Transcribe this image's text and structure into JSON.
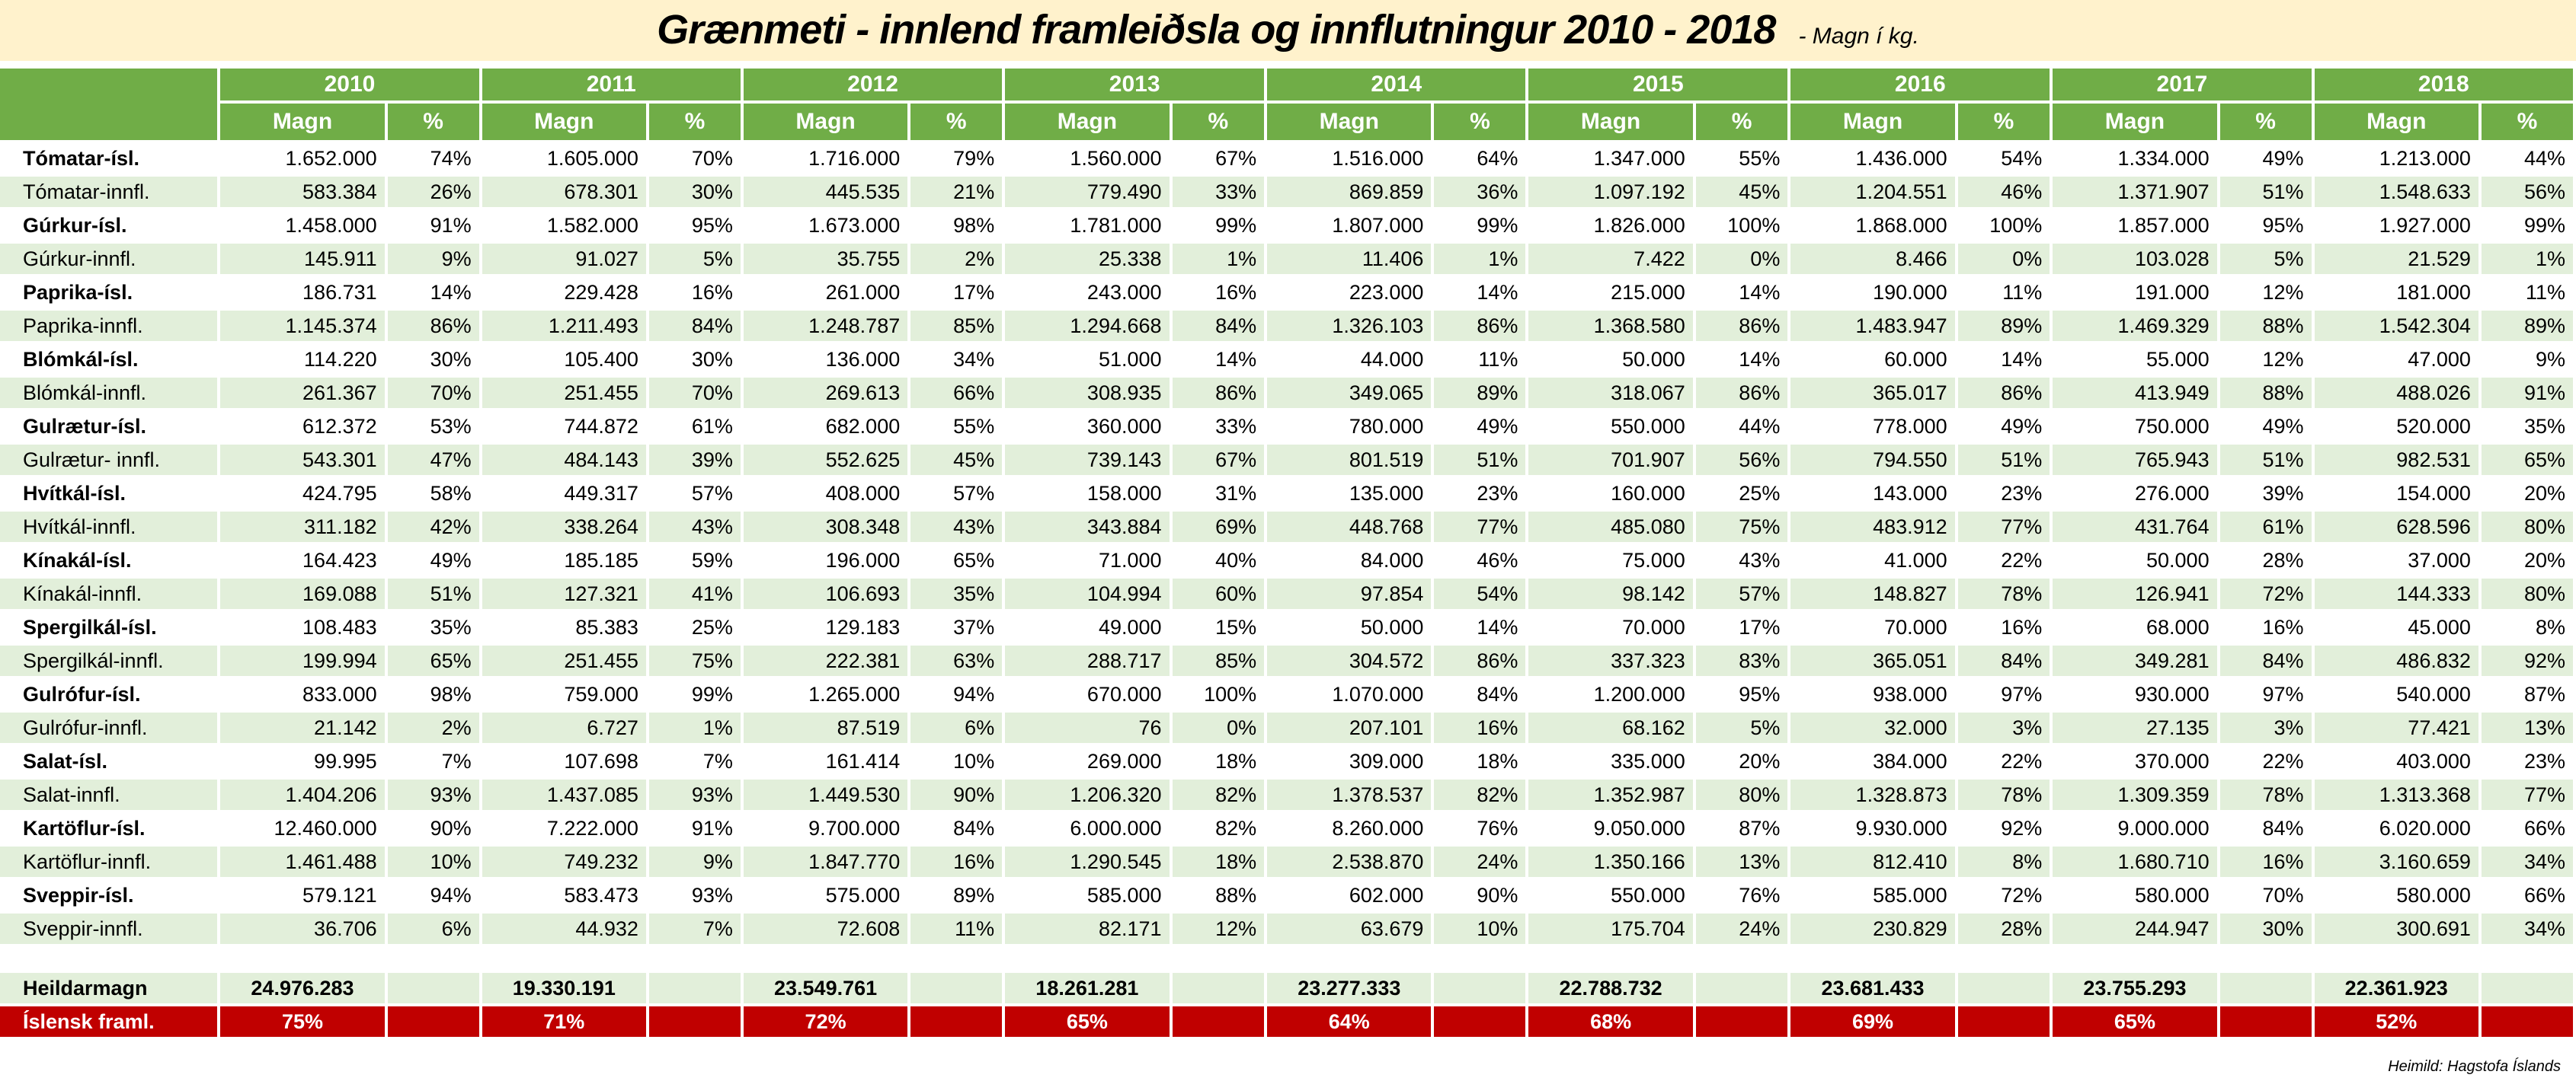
{
  "title": "Grænmeti - innlend framleiðsla og innflutningur 2010 - 2018",
  "unit": "- Magn í kg.",
  "years": [
    "2010",
    "2011",
    "2012",
    "2013",
    "2014",
    "2015",
    "2016",
    "2017",
    "2018"
  ],
  "sub_headers": {
    "amount": "Magn",
    "pct": "%"
  },
  "rows": [
    {
      "label": "Tómatar-ísl.",
      "type": "isl",
      "values": [
        [
          "1.652.000",
          "74%"
        ],
        [
          "1.605.000",
          "70%"
        ],
        [
          "1.716.000",
          "79%"
        ],
        [
          "1.560.000",
          "67%"
        ],
        [
          "1.516.000",
          "64%"
        ],
        [
          "1.347.000",
          "55%"
        ],
        [
          "1.436.000",
          "54%"
        ],
        [
          "1.334.000",
          "49%"
        ],
        [
          "1.213.000",
          "44%"
        ]
      ]
    },
    {
      "label": "Tómatar-innfl.",
      "type": "innfl",
      "values": [
        [
          "583.384",
          "26%"
        ],
        [
          "678.301",
          "30%"
        ],
        [
          "445.535",
          "21%"
        ],
        [
          "779.490",
          "33%"
        ],
        [
          "869.859",
          "36%"
        ],
        [
          "1.097.192",
          "45%"
        ],
        [
          "1.204.551",
          "46%"
        ],
        [
          "1.371.907",
          "51%"
        ],
        [
          "1.548.633",
          "56%"
        ]
      ]
    },
    {
      "label": "Gúrkur-ísl.",
      "type": "isl",
      "values": [
        [
          "1.458.000",
          "91%"
        ],
        [
          "1.582.000",
          "95%"
        ],
        [
          "1.673.000",
          "98%"
        ],
        [
          "1.781.000",
          "99%"
        ],
        [
          "1.807.000",
          "99%"
        ],
        [
          "1.826.000",
          "100%"
        ],
        [
          "1.868.000",
          "100%"
        ],
        [
          "1.857.000",
          "95%"
        ],
        [
          "1.927.000",
          "99%"
        ]
      ]
    },
    {
      "label": "Gúrkur-innfl.",
      "type": "innfl",
      "values": [
        [
          "145.911",
          "9%"
        ],
        [
          "91.027",
          "5%"
        ],
        [
          "35.755",
          "2%"
        ],
        [
          "25.338",
          "1%"
        ],
        [
          "11.406",
          "1%"
        ],
        [
          "7.422",
          "0%"
        ],
        [
          "8.466",
          "0%"
        ],
        [
          "103.028",
          "5%"
        ],
        [
          "21.529",
          "1%"
        ]
      ]
    },
    {
      "label": "Paprika-ísl.",
      "type": "isl",
      "values": [
        [
          "186.731",
          "14%"
        ],
        [
          "229.428",
          "16%"
        ],
        [
          "261.000",
          "17%"
        ],
        [
          "243.000",
          "16%"
        ],
        [
          "223.000",
          "14%"
        ],
        [
          "215.000",
          "14%"
        ],
        [
          "190.000",
          "11%"
        ],
        [
          "191.000",
          "12%"
        ],
        [
          "181.000",
          "11%"
        ]
      ]
    },
    {
      "label": "Paprika-innfl.",
      "type": "innfl",
      "values": [
        [
          "1.145.374",
          "86%"
        ],
        [
          "1.211.493",
          "84%"
        ],
        [
          "1.248.787",
          "85%"
        ],
        [
          "1.294.668",
          "84%"
        ],
        [
          "1.326.103",
          "86%"
        ],
        [
          "1.368.580",
          "86%"
        ],
        [
          "1.483.947",
          "89%"
        ],
        [
          "1.469.329",
          "88%"
        ],
        [
          "1.542.304",
          "89%"
        ]
      ]
    },
    {
      "label": "Blómkál-ísl.",
      "type": "isl",
      "values": [
        [
          "114.220",
          "30%"
        ],
        [
          "105.400",
          "30%"
        ],
        [
          "136.000",
          "34%"
        ],
        [
          "51.000",
          "14%"
        ],
        [
          "44.000",
          "11%"
        ],
        [
          "50.000",
          "14%"
        ],
        [
          "60.000",
          "14%"
        ],
        [
          "55.000",
          "12%"
        ],
        [
          "47.000",
          "9%"
        ]
      ]
    },
    {
      "label": "Blómkál-innfl.",
      "type": "innfl",
      "values": [
        [
          "261.367",
          "70%"
        ],
        [
          "251.455",
          "70%"
        ],
        [
          "269.613",
          "66%"
        ],
        [
          "308.935",
          "86%"
        ],
        [
          "349.065",
          "89%"
        ],
        [
          "318.067",
          "86%"
        ],
        [
          "365.017",
          "86%"
        ],
        [
          "413.949",
          "88%"
        ],
        [
          "488.026",
          "91%"
        ]
      ]
    },
    {
      "label": "Gulrætur-ísl.",
      "type": "isl",
      "values": [
        [
          "612.372",
          "53%"
        ],
        [
          "744.872",
          "61%"
        ],
        [
          "682.000",
          "55%"
        ],
        [
          "360.000",
          "33%"
        ],
        [
          "780.000",
          "49%"
        ],
        [
          "550.000",
          "44%"
        ],
        [
          "778.000",
          "49%"
        ],
        [
          "750.000",
          "49%"
        ],
        [
          "520.000",
          "35%"
        ]
      ]
    },
    {
      "label": "Gulrætur- innfl.",
      "type": "innfl",
      "values": [
        [
          "543.301",
          "47%"
        ],
        [
          "484.143",
          "39%"
        ],
        [
          "552.625",
          "45%"
        ],
        [
          "739.143",
          "67%"
        ],
        [
          "801.519",
          "51%"
        ],
        [
          "701.907",
          "56%"
        ],
        [
          "794.550",
          "51%"
        ],
        [
          "765.943",
          "51%"
        ],
        [
          "982.531",
          "65%"
        ]
      ]
    },
    {
      "label": "Hvítkál-ísl.",
      "type": "isl",
      "values": [
        [
          "424.795",
          "58%"
        ],
        [
          "449.317",
          "57%"
        ],
        [
          "408.000",
          "57%"
        ],
        [
          "158.000",
          "31%"
        ],
        [
          "135.000",
          "23%"
        ],
        [
          "160.000",
          "25%"
        ],
        [
          "143.000",
          "23%"
        ],
        [
          "276.000",
          "39%"
        ],
        [
          "154.000",
          "20%"
        ]
      ]
    },
    {
      "label": "Hvítkál-innfl.",
      "type": "innfl",
      "values": [
        [
          "311.182",
          "42%"
        ],
        [
          "338.264",
          "43%"
        ],
        [
          "308.348",
          "43%"
        ],
        [
          "343.884",
          "69%"
        ],
        [
          "448.768",
          "77%"
        ],
        [
          "485.080",
          "75%"
        ],
        [
          "483.912",
          "77%"
        ],
        [
          "431.764",
          "61%"
        ],
        [
          "628.596",
          "80%"
        ]
      ]
    },
    {
      "label": "Kínakál-ísl.",
      "type": "isl",
      "values": [
        [
          "164.423",
          "49%"
        ],
        [
          "185.185",
          "59%"
        ],
        [
          "196.000",
          "65%"
        ],
        [
          "71.000",
          "40%"
        ],
        [
          "84.000",
          "46%"
        ],
        [
          "75.000",
          "43%"
        ],
        [
          "41.000",
          "22%"
        ],
        [
          "50.000",
          "28%"
        ],
        [
          "37.000",
          "20%"
        ]
      ]
    },
    {
      "label": "Kínakál-innfl.",
      "type": "innfl",
      "values": [
        [
          "169.088",
          "51%"
        ],
        [
          "127.321",
          "41%"
        ],
        [
          "106.693",
          "35%"
        ],
        [
          "104.994",
          "60%"
        ],
        [
          "97.854",
          "54%"
        ],
        [
          "98.142",
          "57%"
        ],
        [
          "148.827",
          "78%"
        ],
        [
          "126.941",
          "72%"
        ],
        [
          "144.333",
          "80%"
        ]
      ]
    },
    {
      "label": "Spergilkál-ísl.",
      "type": "isl",
      "values": [
        [
          "108.483",
          "35%"
        ],
        [
          "85.383",
          "25%"
        ],
        [
          "129.183",
          "37%"
        ],
        [
          "49.000",
          "15%"
        ],
        [
          "50.000",
          "14%"
        ],
        [
          "70.000",
          "17%"
        ],
        [
          "70.000",
          "16%"
        ],
        [
          "68.000",
          "16%"
        ],
        [
          "45.000",
          "8%"
        ]
      ]
    },
    {
      "label": "Spergilkál-innfl.",
      "type": "innfl",
      "values": [
        [
          "199.994",
          "65%"
        ],
        [
          "251.455",
          "75%"
        ],
        [
          "222.381",
          "63%"
        ],
        [
          "288.717",
          "85%"
        ],
        [
          "304.572",
          "86%"
        ],
        [
          "337.323",
          "83%"
        ],
        [
          "365.051",
          "84%"
        ],
        [
          "349.281",
          "84%"
        ],
        [
          "486.832",
          "92%"
        ]
      ]
    },
    {
      "label": "Gulrófur-ísl.",
      "type": "isl",
      "values": [
        [
          "833.000",
          "98%"
        ],
        [
          "759.000",
          "99%"
        ],
        [
          "1.265.000",
          "94%"
        ],
        [
          "670.000",
          "100%"
        ],
        [
          "1.070.000",
          "84%"
        ],
        [
          "1.200.000",
          "95%"
        ],
        [
          "938.000",
          "97%"
        ],
        [
          "930.000",
          "97%"
        ],
        [
          "540.000",
          "87%"
        ]
      ]
    },
    {
      "label": "Gulrófur-innfl.",
      "type": "innfl",
      "values": [
        [
          "21.142",
          "2%"
        ],
        [
          "6.727",
          "1%"
        ],
        [
          "87.519",
          "6%"
        ],
        [
          "76",
          "0%"
        ],
        [
          "207.101",
          "16%"
        ],
        [
          "68.162",
          "5%"
        ],
        [
          "32.000",
          "3%"
        ],
        [
          "27.135",
          "3%"
        ],
        [
          "77.421",
          "13%"
        ]
      ]
    },
    {
      "label": "Salat-ísl.",
      "type": "isl",
      "values": [
        [
          "99.995",
          "7%"
        ],
        [
          "107.698",
          "7%"
        ],
        [
          "161.414",
          "10%"
        ],
        [
          "269.000",
          "18%"
        ],
        [
          "309.000",
          "18%"
        ],
        [
          "335.000",
          "20%"
        ],
        [
          "384.000",
          "22%"
        ],
        [
          "370.000",
          "22%"
        ],
        [
          "403.000",
          "23%"
        ]
      ]
    },
    {
      "label": "Salat-innfl.",
      "type": "innfl",
      "values": [
        [
          "1.404.206",
          "93%"
        ],
        [
          "1.437.085",
          "93%"
        ],
        [
          "1.449.530",
          "90%"
        ],
        [
          "1.206.320",
          "82%"
        ],
        [
          "1.378.537",
          "82%"
        ],
        [
          "1.352.987",
          "80%"
        ],
        [
          "1.328.873",
          "78%"
        ],
        [
          "1.309.359",
          "78%"
        ],
        [
          "1.313.368",
          "77%"
        ]
      ]
    },
    {
      "label": "Kartöflur-ísl.",
      "type": "isl",
      "values": [
        [
          "12.460.000",
          "90%"
        ],
        [
          "7.222.000",
          "91%"
        ],
        [
          "9.700.000",
          "84%"
        ],
        [
          "6.000.000",
          "82%"
        ],
        [
          "8.260.000",
          "76%"
        ],
        [
          "9.050.000",
          "87%"
        ],
        [
          "9.930.000",
          "92%"
        ],
        [
          "9.000.000",
          "84%"
        ],
        [
          "6.020.000",
          "66%"
        ]
      ]
    },
    {
      "label": "Kartöflur-innfl.",
      "type": "innfl",
      "values": [
        [
          "1.461.488",
          "10%"
        ],
        [
          "749.232",
          "9%"
        ],
        [
          "1.847.770",
          "16%"
        ],
        [
          "1.290.545",
          "18%"
        ],
        [
          "2.538.870",
          "24%"
        ],
        [
          "1.350.166",
          "13%"
        ],
        [
          "812.410",
          "8%"
        ],
        [
          "1.680.710",
          "16%"
        ],
        [
          "3.160.659",
          "34%"
        ]
      ]
    },
    {
      "label": "Sveppir-ísl.",
      "type": "isl",
      "values": [
        [
          "579.121",
          "94%"
        ],
        [
          "583.473",
          "93%"
        ],
        [
          "575.000",
          "89%"
        ],
        [
          "585.000",
          "88%"
        ],
        [
          "602.000",
          "90%"
        ],
        [
          "550.000",
          "76%"
        ],
        [
          "585.000",
          "72%"
        ],
        [
          "580.000",
          "70%"
        ],
        [
          "580.000",
          "66%"
        ]
      ]
    },
    {
      "label": "Sveppir-innfl.",
      "type": "innfl",
      "values": [
        [
          "36.706",
          "6%"
        ],
        [
          "44.932",
          "7%"
        ],
        [
          "72.608",
          "11%"
        ],
        [
          "82.171",
          "12%"
        ],
        [
          "63.679",
          "10%"
        ],
        [
          "175.704",
          "24%"
        ],
        [
          "230.829",
          "28%"
        ],
        [
          "244.947",
          "30%"
        ],
        [
          "300.691",
          "34%"
        ]
      ]
    }
  ],
  "total": {
    "label": "Heildarmagn",
    "values": [
      "24.976.283",
      "19.330.191",
      "23.549.761",
      "18.261.281",
      "23.277.333",
      "22.788.732",
      "23.681.433",
      "23.755.293",
      "22.361.923"
    ]
  },
  "domestic_share": {
    "label": "Íslensk framl.",
    "values": [
      "75%",
      "71%",
      "72%",
      "65%",
      "64%",
      "68%",
      "69%",
      "65%",
      "52%"
    ]
  },
  "source": "Heimild:  Hagstofa Íslands",
  "colors": {
    "header": "#70AD47",
    "alt_row": "#E2EFDA",
    "share_row": "#C00000",
    "title_bg": "#FFF2CC"
  }
}
